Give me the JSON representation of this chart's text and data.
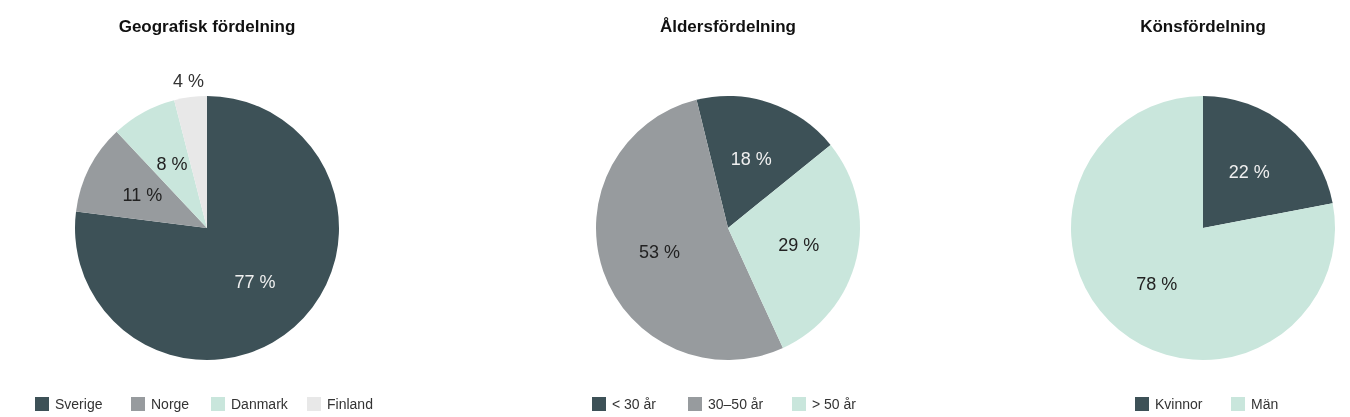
{
  "chart_data": [
    {
      "type": "pie",
      "title": "Geografisk fördelning",
      "categories": [
        "Sverige",
        "Norge",
        "Danmark",
        "Finland"
      ],
      "values": [
        77,
        11,
        8,
        4
      ],
      "value_labels": [
        "77 %",
        "11 %",
        "8 %",
        "4 %"
      ],
      "colors": [
        "#3d5157",
        "#979b9e",
        "#c9e6dc",
        "#e8e8e8"
      ],
      "legend": "bottom"
    },
    {
      "type": "pie",
      "title": "Åldersfördelning",
      "categories": [
        "< 30 år",
        "30–50 år",
        "> 50 år"
      ],
      "values": [
        18,
        53,
        29
      ],
      "value_labels": [
        "18 %",
        "53 %",
        "29 %"
      ],
      "colors": [
        "#3d5157",
        "#979b9e",
        "#c9e6dc"
      ],
      "legend": "bottom"
    },
    {
      "type": "pie",
      "title": "Könsfördelning",
      "categories": [
        "Kvinnor",
        "Män"
      ],
      "values": [
        22,
        78
      ],
      "value_labels": [
        "22 %",
        "78 %"
      ],
      "colors": [
        "#3d5157",
        "#c9e6dc"
      ],
      "legend": "bottom"
    }
  ]
}
